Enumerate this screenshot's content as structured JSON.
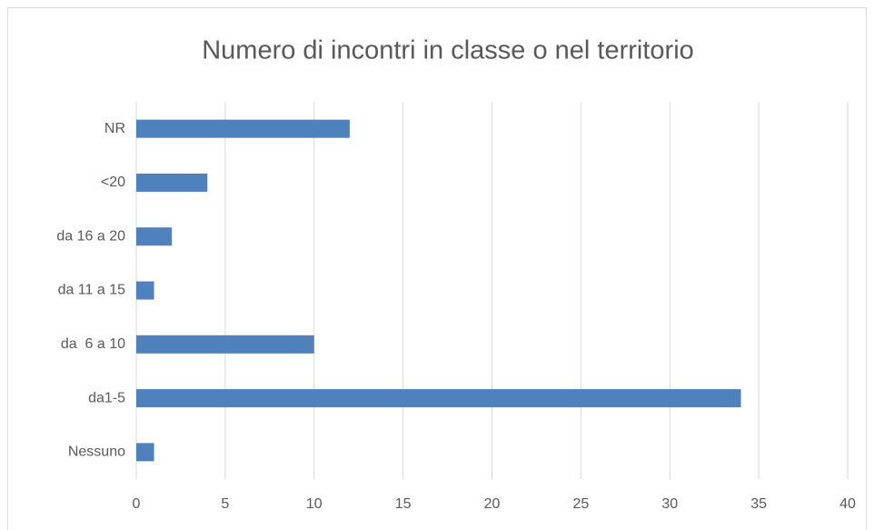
{
  "chart_data": {
    "type": "barh",
    "title": "Numero di incontri in classe o nel territorio",
    "categories": [
      "Nessuno",
      "da1-5",
      "da  6 a 10",
      "da 11 a 15",
      "da 16 a 20",
      "<20",
      "NR"
    ],
    "values": [
      1,
      34,
      10,
      1,
      2,
      4,
      12
    ],
    "color": "#4f81bd",
    "xlim": [
      0,
      40
    ],
    "xticks": [
      0,
      5,
      10,
      15,
      20,
      25,
      30,
      35,
      40
    ],
    "grid": true
  }
}
